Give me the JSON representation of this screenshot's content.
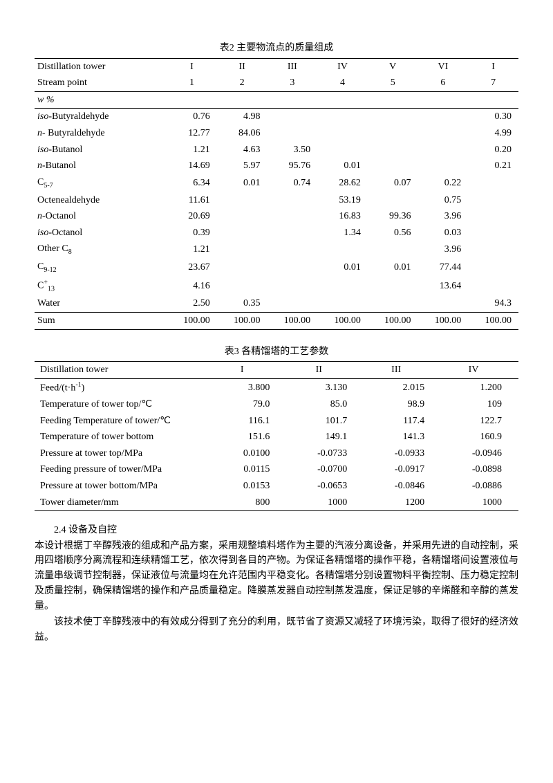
{
  "table2": {
    "title": "表2 主要物流点的质量组成",
    "header1": {
      "label": "Distillation tower",
      "cols": [
        "I",
        "II",
        "III",
        "IV",
        "V",
        "VI",
        "I"
      ]
    },
    "header2": {
      "label": "Stream point",
      "cols": [
        "1",
        "2",
        "3",
        "4",
        "5",
        "6",
        "7"
      ]
    },
    "wpct_label": "w %",
    "rows": [
      {
        "label_pre": "iso-",
        "label": "Butyraldehyde",
        "v": [
          "0.76",
          "4.98",
          "",
          "",
          "",
          "",
          "0.30"
        ]
      },
      {
        "label_pre": "n- ",
        "label": "Butyraldehyde",
        "v": [
          "12.77",
          "84.06",
          "",
          "",
          "",
          "",
          "4.99"
        ]
      },
      {
        "label_pre": "iso-",
        "label": "Butanol",
        "v": [
          "1.21",
          "4.63",
          "3.50",
          "",
          "",
          "",
          "0.20"
        ]
      },
      {
        "label_pre": "n-",
        "label": "Butanol",
        "v": [
          "14.69",
          "5.97",
          "95.76",
          "0.01",
          "",
          "",
          "0.21"
        ]
      },
      {
        "label": "C",
        "sub": "5-7",
        "v": [
          "6.34",
          "0.01",
          "0.74",
          "28.62",
          "0.07",
          "0.22",
          ""
        ]
      },
      {
        "label": "Octenealdehyde",
        "v": [
          "11.61",
          "",
          "",
          "53.19",
          "",
          "0.75",
          ""
        ]
      },
      {
        "label_pre": "n-",
        "label": "Octanol",
        "v": [
          "20.69",
          "",
          "",
          "16.83",
          "99.36",
          "3.96",
          ""
        ]
      },
      {
        "label_pre": "iso-",
        "label": "Octanol",
        "v": [
          "0.39",
          "",
          "",
          "1.34",
          "0.56",
          "0.03",
          ""
        ]
      },
      {
        "label": "Other C",
        "sub": "8",
        "v": [
          "1.21",
          "",
          "",
          "",
          "",
          "3.96",
          ""
        ]
      },
      {
        "label": "C",
        "sub": "9-12",
        "v": [
          "23.67",
          "",
          "",
          "0.01",
          "0.01",
          "77.44",
          ""
        ]
      },
      {
        "label": "C",
        "sup": "+",
        "sub": "13",
        "v": [
          "4.16",
          "",
          "",
          "",
          "",
          "13.64",
          ""
        ]
      },
      {
        "label": "Water",
        "v": [
          "2.50",
          "0.35",
          "",
          "",
          "",
          "",
          "94.3"
        ]
      },
      {
        "label": "Sum",
        "v": [
          "100.00",
          "100.00",
          "100.00",
          "100.00",
          "100.00",
          "100.00",
          "100.00"
        ]
      }
    ]
  },
  "table3": {
    "title": "表3 各精馏塔的工艺参数",
    "header": {
      "label": "Distillation tower",
      "cols": [
        "I",
        "II",
        "III",
        "IV"
      ]
    },
    "rows": [
      {
        "label": "Feed/(t·h",
        "sup": "-1",
        "tail": ")",
        "v": [
          "3.800",
          "3.130",
          "2.015",
          "1.200"
        ]
      },
      {
        "label": "Temperature of tower top/℃",
        "v": [
          "79.0",
          "85.0",
          "98.9",
          "109"
        ]
      },
      {
        "label": "Feeding Temperature of tower/℃",
        "v": [
          "116.1",
          "101.7",
          "117.4",
          "122.7"
        ]
      },
      {
        "label": "Temperature of tower bottom",
        "v": [
          "151.6",
          "149.1",
          "141.3",
          "160.9"
        ]
      },
      {
        "label": "Pressure at tower top/MPa",
        "v": [
          "0.0100",
          "-0.0733",
          "-0.0933",
          "-0.0946"
        ]
      },
      {
        "label": "Feeding pressure of tower/MPa",
        "v": [
          "0.0115",
          "-0.0700",
          "-0.0917",
          "-0.0898"
        ]
      },
      {
        "label": "Pressure at tower bottom/MPa",
        "v": [
          "0.0153",
          "-0.0653",
          "-0.0846",
          "-0.0886"
        ]
      },
      {
        "label": "Tower diameter/mm",
        "v": [
          "800",
          "1000",
          "1200",
          "1000"
        ]
      }
    ]
  },
  "section": {
    "heading": "2.4 设备及自控",
    "p1": "本设计根据丁辛醇残液的组成和产品方案，采用规整填料塔作为主要的汽液分离设备，并采用先进的自动控制，采用四塔顺序分离流程和连续精馏工艺，依次得到各目的产物。为保证各精馏塔的操作平稳，各精馏塔间设置液位与流量串级调节控制器，保证液位与流量均在允许范围内平稳变化。各精馏塔分别设置物料平衡控制、压力稳定控制及质量控制，确保精馏塔的操作和产品质量稳定。降膜蒸发器自动控制蒸发温度，保证足够的辛烯醛和辛醇的蒸发量。",
    "p2": "该技术使丁辛醇残液中的有效成分得到了充分的利用，既节省了资源又减轻了环境污染，取得了很好的经济效益。"
  }
}
